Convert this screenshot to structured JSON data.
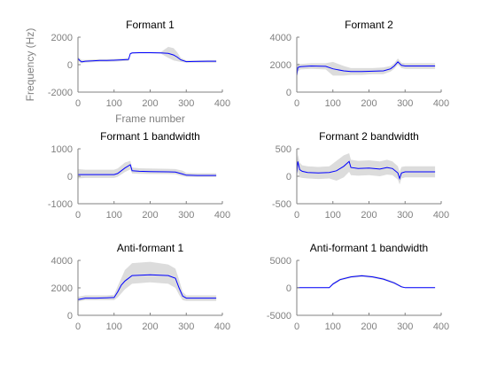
{
  "chart_data": [
    {
      "type": "line",
      "title": "Formant 1",
      "xlabel": "Frame number",
      "ylabel": "Frequency (Hz)",
      "xlim": [
        0,
        400
      ],
      "ylim": [
        -2000,
        2000
      ],
      "xticks": [
        0,
        100,
        200,
        300,
        400
      ],
      "yticks": [
        -2000,
        0,
        2000
      ],
      "colors": {
        "line": "#0000ff",
        "band": "#dcdcdc"
      },
      "series": [
        {
          "x": [
            0,
            5,
            10,
            20,
            40,
            60,
            80,
            100,
            120,
            140,
            145,
            150,
            170,
            200,
            230,
            250,
            265,
            275,
            285,
            300,
            320,
            340,
            360,
            383
          ],
          "values": [
            450,
            300,
            200,
            250,
            280,
            300,
            300,
            320,
            350,
            380,
            800,
            850,
            870,
            870,
            860,
            820,
            700,
            550,
            350,
            220,
            230,
            240,
            250,
            250
          ],
          "band_lower": [
            300,
            150,
            100,
            150,
            180,
            200,
            200,
            220,
            250,
            280,
            750,
            800,
            820,
            820,
            800,
            500,
            300,
            250,
            200,
            150,
            150,
            150,
            150,
            150
          ],
          "band_upper": [
            600,
            450,
            350,
            350,
            380,
            400,
            400,
            420,
            450,
            480,
            850,
            900,
            920,
            920,
            920,
            1300,
            1200,
            900,
            500,
            300,
            310,
            320,
            330,
            330
          ]
        }
      ]
    },
    {
      "type": "line",
      "title": "Formant 2",
      "xlabel": "",
      "ylabel": "",
      "xlim": [
        0,
        400
      ],
      "ylim": [
        0,
        4000
      ],
      "xticks": [
        0,
        100,
        200,
        300,
        400
      ],
      "yticks": [
        0,
        2000,
        4000
      ],
      "colors": {
        "line": "#0000ff",
        "band": "#dcdcdc"
      },
      "series": [
        {
          "x": [
            0,
            3,
            10,
            40,
            80,
            100,
            130,
            150,
            180,
            210,
            240,
            260,
            270,
            280,
            290,
            300,
            330,
            360,
            383
          ],
          "values": [
            1200,
            1800,
            1850,
            1900,
            1880,
            1700,
            1550,
            1500,
            1500,
            1520,
            1550,
            1700,
            1900,
            2200,
            1950,
            1900,
            1900,
            1900,
            1900
          ],
          "band_lower": [
            1000,
            1500,
            1650,
            1700,
            1650,
            1200,
            1200,
            1250,
            1250,
            1300,
            1300,
            1500,
            1700,
            2000,
            1750,
            1700,
            1700,
            1700,
            1700
          ],
          "band_upper": [
            1400,
            2100,
            2050,
            2100,
            2100,
            2200,
            1900,
            1750,
            1750,
            1750,
            1800,
            1900,
            2100,
            2450,
            2150,
            2100,
            2100,
            2100,
            2100
          ]
        }
      ]
    },
    {
      "type": "line",
      "title": "Formant 1 bandwidth",
      "xlabel": "",
      "ylabel": "",
      "xlim": [
        0,
        400
      ],
      "ylim": [
        -1000,
        1000
      ],
      "xticks": [
        0,
        100,
        200,
        300,
        400
      ],
      "yticks": [
        -1000,
        0,
        1000
      ],
      "colors": {
        "line": "#0000ff",
        "band": "#dcdcdc"
      },
      "series": [
        {
          "x": [
            0,
            20,
            50,
            80,
            100,
            110,
            130,
            145,
            150,
            170,
            200,
            250,
            270,
            290,
            300,
            330,
            360,
            383
          ],
          "values": [
            60,
            60,
            60,
            60,
            60,
            100,
            300,
            420,
            200,
            180,
            170,
            160,
            150,
            80,
            40,
            30,
            30,
            30
          ],
          "band_lower": [
            -80,
            -60,
            -60,
            -60,
            -60,
            -20,
            150,
            250,
            100,
            90,
            80,
            80,
            70,
            0,
            -20,
            -30,
            -30,
            -30
          ],
          "band_upper": [
            260,
            240,
            240,
            240,
            240,
            280,
            500,
            560,
            320,
            290,
            280,
            270,
            260,
            200,
            120,
            110,
            110,
            110
          ]
        }
      ]
    },
    {
      "type": "line",
      "title": "Formant 2 bandwidth",
      "xlabel": "",
      "ylabel": "",
      "xlim": [
        0,
        400
      ],
      "ylim": [
        -500,
        500
      ],
      "xticks": [
        0,
        100,
        200,
        300,
        400
      ],
      "yticks": [
        -500,
        0,
        500
      ],
      "colors": {
        "line": "#0000ff",
        "band": "#dcdcdc"
      },
      "series": [
        {
          "x": [
            0,
            3,
            8,
            15,
            30,
            60,
            90,
            110,
            130,
            145,
            150,
            170,
            200,
            230,
            250,
            265,
            280,
            285,
            290,
            300,
            330,
            360,
            383
          ],
          "values": [
            50,
            270,
            120,
            90,
            70,
            60,
            70,
            100,
            180,
            270,
            160,
            140,
            150,
            130,
            160,
            140,
            60,
            -40,
            60,
            80,
            80,
            80,
            80
          ],
          "band_lower": [
            -100,
            100,
            -20,
            -30,
            -40,
            -50,
            -40,
            -80,
            -20,
            80,
            20,
            10,
            20,
            0,
            30,
            20,
            -60,
            -150,
            -40,
            -20,
            -20,
            -20,
            -20
          ],
          "band_upper": [
            200,
            400,
            250,
            200,
            180,
            170,
            180,
            280,
            380,
            420,
            300,
            280,
            290,
            270,
            300,
            270,
            180,
            80,
            170,
            180,
            180,
            180,
            180
          ]
        }
      ]
    },
    {
      "type": "line",
      "title": "Anti-formant 1",
      "xlabel": "",
      "ylabel": "",
      "xlim": [
        0,
        400
      ],
      "ylim": [
        0,
        4000
      ],
      "xticks": [
        0,
        100,
        200,
        300,
        400
      ],
      "yticks": [
        0,
        2000,
        4000
      ],
      "colors": {
        "line": "#0000ff",
        "band": "#dcdcdc"
      },
      "series": [
        {
          "x": [
            0,
            20,
            50,
            80,
            100,
            110,
            120,
            130,
            150,
            200,
            250,
            270,
            280,
            290,
            300,
            330,
            360,
            383
          ],
          "values": [
            1150,
            1250,
            1250,
            1280,
            1300,
            1700,
            2200,
            2500,
            2900,
            2950,
            2900,
            2700,
            2000,
            1400,
            1250,
            1250,
            1250,
            1250
          ],
          "band_lower": [
            1000,
            1100,
            1100,
            1100,
            1100,
            1300,
            1600,
            1900,
            2300,
            2400,
            2300,
            2000,
            1500,
            1100,
            1050,
            1050,
            1050,
            1050
          ],
          "band_upper": [
            1350,
            1450,
            1450,
            1450,
            1500,
            2100,
            2700,
            3300,
            3800,
            3900,
            3700,
            3400,
            2600,
            1700,
            1450,
            1450,
            1450,
            1450
          ]
        }
      ]
    },
    {
      "type": "line",
      "title": "Anti-formant 1 bandwidth",
      "xlabel": "",
      "ylabel": "",
      "xlim": [
        0,
        400
      ],
      "ylim": [
        -5000,
        5000
      ],
      "xticks": [
        0,
        100,
        200,
        300,
        400
      ],
      "yticks": [
        -5000,
        0,
        5000
      ],
      "colors": {
        "line": "#0000ff",
        "band": "#dcdcdc"
      },
      "series": [
        {
          "x": [
            0,
            30,
            60,
            90,
            100,
            120,
            150,
            180,
            210,
            240,
            270,
            290,
            300,
            330,
            360,
            383
          ],
          "values": [
            30,
            30,
            30,
            50,
            700,
            1500,
            2000,
            2200,
            2000,
            1600,
            900,
            200,
            30,
            30,
            30,
            30
          ],
          "band_lower": [
            -50,
            -50,
            -50,
            -50,
            500,
            1300,
            1800,
            2000,
            1800,
            1400,
            700,
            50,
            -50,
            -50,
            -50,
            -50
          ],
          "band_upper": [
            110,
            110,
            110,
            150,
            900,
            1700,
            2200,
            2400,
            2200,
            1800,
            1100,
            350,
            110,
            110,
            110,
            110
          ]
        }
      ]
    }
  ]
}
